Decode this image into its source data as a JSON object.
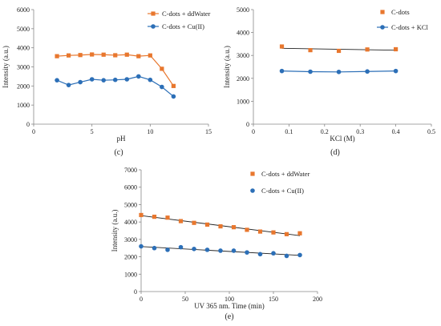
{
  "chart_data": [
    {
      "type": "line",
      "panel_label": "(c)",
      "xlabel": "pH",
      "ylabel": "Intensity (a.u.)",
      "xlim": [
        0,
        15
      ],
      "ylim": [
        0,
        6000
      ],
      "xticks": [
        0,
        5,
        10,
        15
      ],
      "yticks": [
        0,
        1000,
        2000,
        3000,
        4000,
        5000,
        6000
      ],
      "grid": false,
      "legend": "top-right",
      "series": [
        {
          "name": "C-dots + ddWater",
          "marker": "square",
          "color": "#e8772e",
          "x": [
            2,
            3,
            4,
            5,
            6,
            7,
            8,
            9,
            10,
            11,
            12
          ],
          "y": [
            3560,
            3600,
            3620,
            3650,
            3640,
            3610,
            3640,
            3560,
            3600,
            2900,
            2000
          ]
        },
        {
          "name": "C-dots + Cu(II)",
          "marker": "circle",
          "color": "#2c6fb7",
          "x": [
            2,
            3,
            4,
            5,
            6,
            7,
            8,
            9,
            10,
            11,
            12
          ],
          "y": [
            2300,
            2050,
            2200,
            2350,
            2300,
            2320,
            2350,
            2500,
            2320,
            1950,
            1450
          ]
        }
      ]
    },
    {
      "type": "scatter",
      "panel_label": "(d)",
      "xlabel": "KCl (M)",
      "ylabel": "Intensity (a.u.)",
      "xlim": [
        0,
        0.5
      ],
      "ylim": [
        0,
        5000
      ],
      "xticks": [
        0,
        0.1,
        0.2,
        0.3,
        0.4,
        0.5
      ],
      "yticks": [
        0,
        1000,
        2000,
        3000,
        4000,
        5000
      ],
      "grid": false,
      "legend": "top-right",
      "series": [
        {
          "name": "C-dots",
          "marker": "square",
          "color": "#e8772e",
          "trendline": true,
          "x": [
            0.08,
            0.16,
            0.24,
            0.32,
            0.4
          ],
          "y": [
            3390,
            3230,
            3200,
            3260,
            3270
          ]
        },
        {
          "name": "C-dots + KCl",
          "marker": "circle",
          "color": "#2c6fb7",
          "line": true,
          "x": [
            0.08,
            0.16,
            0.24,
            0.32,
            0.4
          ],
          "y": [
            2320,
            2290,
            2280,
            2300,
            2320
          ]
        }
      ]
    },
    {
      "type": "scatter",
      "panel_label": "(e)",
      "xlabel": "UV 365 nm. Time (min)",
      "ylabel": "Intensity (a.u.)",
      "xlim": [
        0,
        200
      ],
      "ylim": [
        0,
        7000
      ],
      "xticks": [
        0,
        50,
        100,
        150,
        200
      ],
      "yticks": [
        0,
        1000,
        2000,
        3000,
        4000,
        5000,
        6000,
        7000
      ],
      "grid": false,
      "legend": "top-right",
      "series": [
        {
          "name": "C-dots + ddWater",
          "marker": "square",
          "color": "#e8772e",
          "trendline": true,
          "x": [
            0,
            15,
            30,
            45,
            60,
            75,
            90,
            105,
            120,
            135,
            150,
            165,
            180
          ],
          "y": [
            4400,
            4300,
            4250,
            4050,
            3950,
            3850,
            3750,
            3700,
            3550,
            3450,
            3400,
            3300,
            3350
          ]
        },
        {
          "name": "C-dots + Cu(II)",
          "marker": "circle",
          "color": "#2c6fb7",
          "trendline": true,
          "x": [
            0,
            15,
            30,
            45,
            60,
            75,
            90,
            105,
            120,
            135,
            150,
            165,
            180
          ],
          "y": [
            2600,
            2500,
            2400,
            2550,
            2450,
            2400,
            2350,
            2350,
            2250,
            2150,
            2200,
            2050,
            2100
          ]
        }
      ]
    }
  ]
}
